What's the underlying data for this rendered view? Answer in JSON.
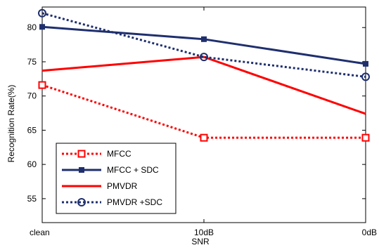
{
  "chart_data": {
    "type": "line",
    "title": "",
    "xlabel": "SNR",
    "ylabel": "Recognition Rate(%)",
    "categories": [
      "clean",
      "10dB",
      "0dB"
    ],
    "ylim": [
      51.5,
      83
    ],
    "yticks": [
      55,
      60,
      65,
      70,
      75,
      80
    ],
    "grid": false,
    "legend_position": "bottom-left",
    "series": [
      {
        "name": "MFCC",
        "values": [
          71.6,
          63.9,
          63.9
        ],
        "color": "#ff0000",
        "dash": "dotted",
        "marker": "square-open"
      },
      {
        "name": "MFCC + SDC",
        "values": [
          80.1,
          78.3,
          74.7
        ],
        "color": "#1f2f6e",
        "dash": "solid",
        "marker": "square-filled"
      },
      {
        "name": "PMVDR",
        "values": [
          73.7,
          75.7,
          67.4
        ],
        "color": "#ff0000",
        "dash": "solid",
        "marker": "none"
      },
      {
        "name": "PMVDR +SDC",
        "values": [
          82.1,
          75.7,
          72.8
        ],
        "color": "#1f2f6e",
        "dash": "dotted",
        "marker": "circle-open"
      }
    ]
  }
}
